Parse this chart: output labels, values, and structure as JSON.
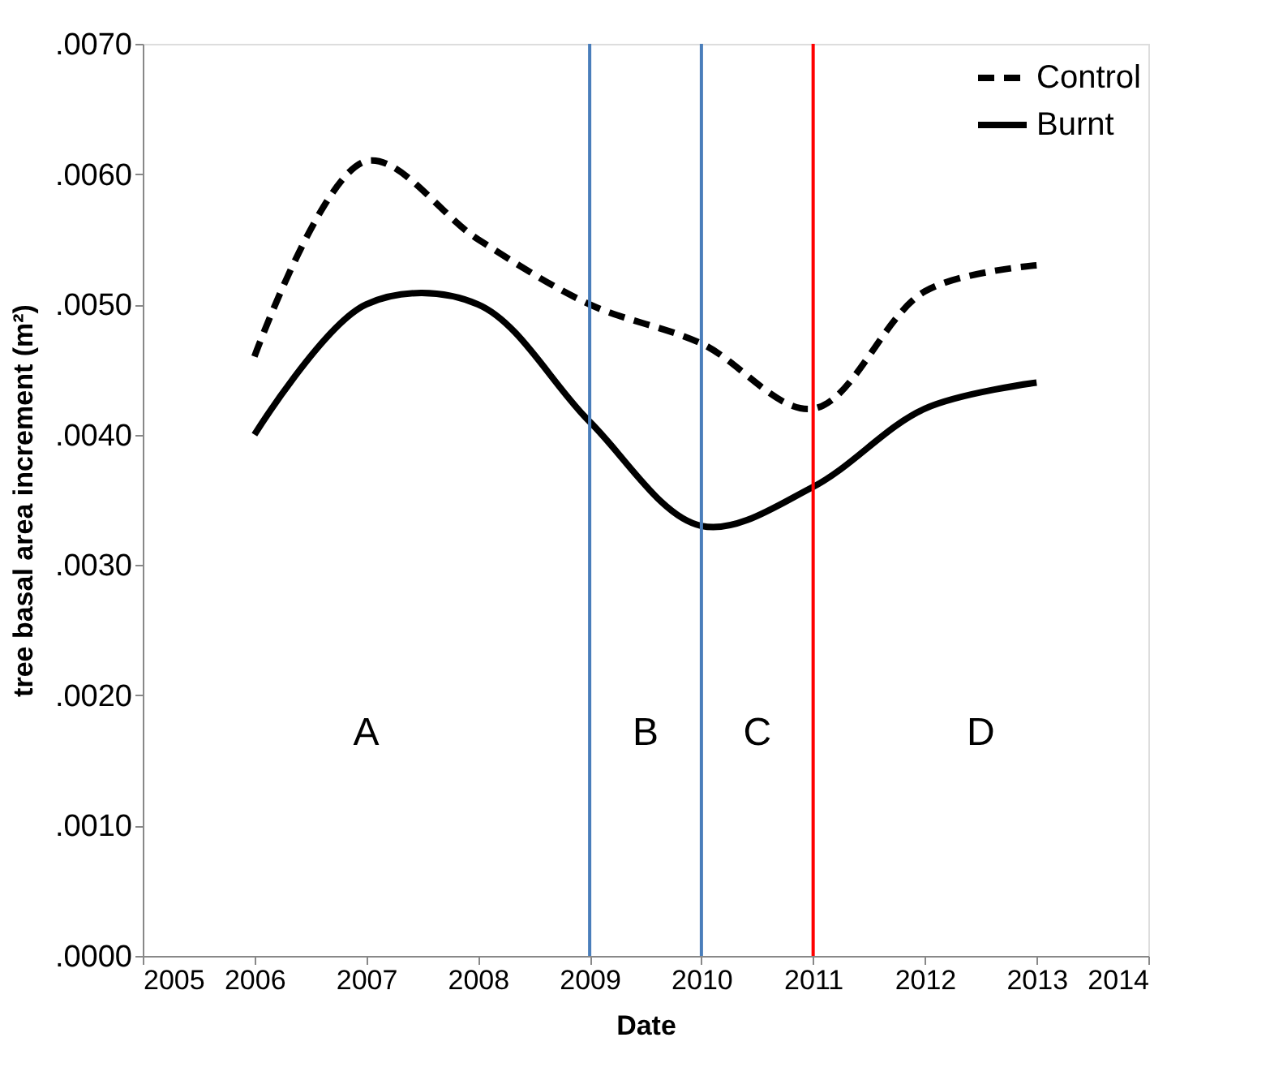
{
  "chart_data": {
    "type": "line",
    "xlabel": "Date",
    "ylabel": "tree basal area increment (m²)",
    "x": [
      2006,
      2007,
      2008,
      2009,
      2010,
      2011,
      2012,
      2013
    ],
    "series": [
      {
        "name": "Control",
        "color": "#000000",
        "line_style": "dashed",
        "values": [
          0.0046,
          0.0061,
          0.0055,
          0.005,
          0.0047,
          0.0042,
          0.0051,
          0.0053
        ]
      },
      {
        "name": "Burnt",
        "color": "#000000",
        "line_style": "solid",
        "values": [
          0.004,
          0.005,
          0.005,
          0.0041,
          0.0033,
          0.0036,
          0.0042,
          0.0044
        ]
      }
    ],
    "xlim": [
      2005,
      2014
    ],
    "xticks": [
      2005,
      2006,
      2007,
      2008,
      2009,
      2010,
      2011,
      2012,
      2013,
      2014
    ],
    "ylim": [
      0,
      0.007
    ],
    "yticks": [
      {
        "value": 0,
        "label": ".0000"
      },
      {
        "value": 0.001,
        "label": ".0010"
      },
      {
        "value": 0.002,
        "label": ".0020"
      },
      {
        "value": 0.003,
        "label": ".0030"
      },
      {
        "value": 0.004,
        "label": ".0040"
      },
      {
        "value": 0.005,
        "label": ".0050"
      },
      {
        "value": 0.006,
        "label": ".0060"
      },
      {
        "value": 0.007,
        "label": ".0070"
      }
    ],
    "ref_lines": [
      {
        "axis": "x",
        "value": 2009,
        "color": "#4a7ebb"
      },
      {
        "axis": "x",
        "value": 2010,
        "color": "#4a7ebb"
      },
      {
        "axis": "x",
        "value": 2011,
        "color": "#ff0000"
      }
    ],
    "annotations": [
      "A",
      "B",
      "C",
      "D"
    ],
    "grid": false,
    "legend": "top right",
    "marker": "none"
  }
}
